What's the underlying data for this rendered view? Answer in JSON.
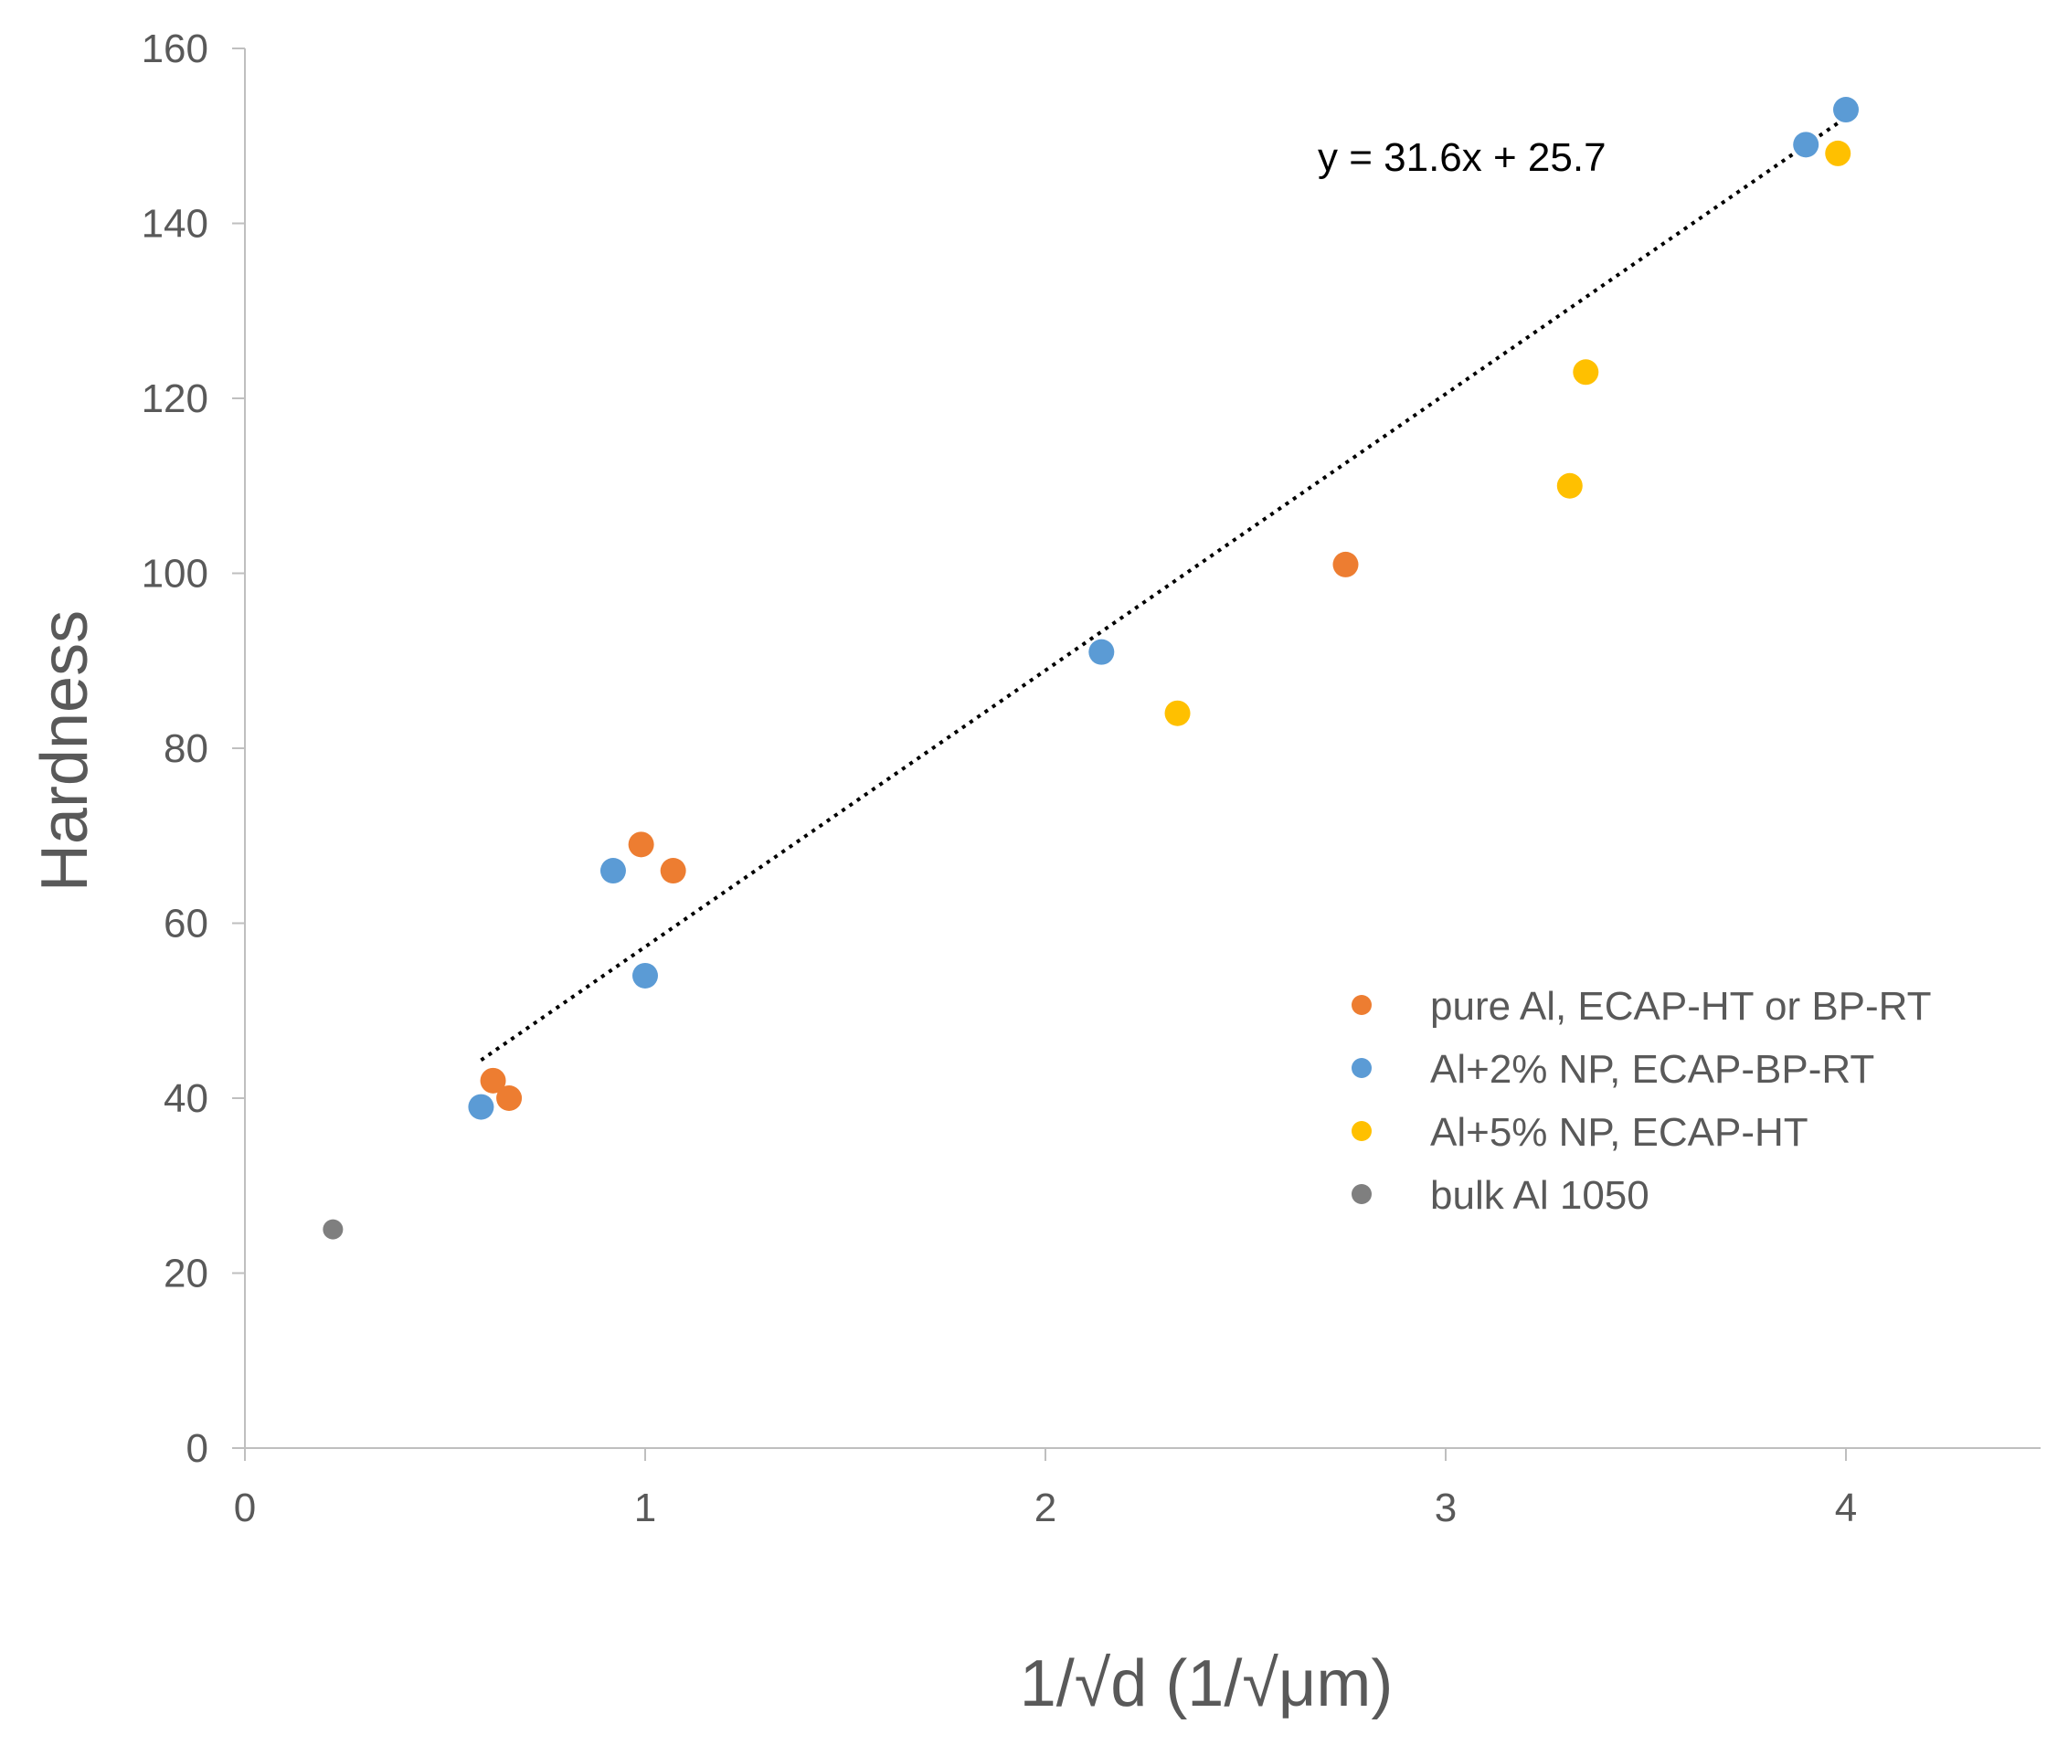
{
  "chart_data": {
    "type": "scatter",
    "title": "",
    "xlabel": "1/√d   (1/√μm)",
    "ylabel": "Hardness",
    "xlim": [
      0,
      4.5
    ],
    "ylim": [
      0,
      160
    ],
    "xticks": [
      0,
      1,
      2,
      3,
      4
    ],
    "yticks": [
      0,
      20,
      40,
      60,
      80,
      100,
      120,
      140,
      160
    ],
    "xtick_labels": [
      "0",
      "1",
      "2",
      "3",
      "4"
    ],
    "ytick_labels": [
      "0",
      "20",
      "40",
      "60",
      "80",
      "100",
      "120",
      "140",
      "160"
    ],
    "grid": false,
    "legend_position": "right",
    "series": [
      {
        "name": "pure Al, ECAP-HT or BP-RT",
        "color": "#ed7d31",
        "points": [
          [
            0.62,
            42
          ],
          [
            0.66,
            40
          ],
          [
            0.99,
            69
          ],
          [
            1.07,
            66
          ],
          [
            2.75,
            101
          ]
        ]
      },
      {
        "name": "Al+2% NP, ECAP-BP-RT",
        "color": "#5b9bd5",
        "points": [
          [
            0.59,
            39
          ],
          [
            0.92,
            66
          ],
          [
            1.0,
            54
          ],
          [
            2.14,
            91
          ],
          [
            3.9,
            149
          ],
          [
            4.0,
            153
          ]
        ]
      },
      {
        "name": "Al+5% NP, ECAP-HT",
        "color": "#ffc000",
        "points": [
          [
            2.33,
            84
          ],
          [
            3.31,
            110
          ],
          [
            3.35,
            123
          ],
          [
            3.98,
            148
          ]
        ]
      },
      {
        "name": "bulk Al 1050",
        "color": "#7f7f7f",
        "points": [
          [
            0.22,
            25
          ]
        ]
      }
    ],
    "trendline": {
      "equation": "y = 31.6x + 25.7",
      "slope": 31.6,
      "intercept": 25.7,
      "x_range": [
        0.59,
        4.0
      ],
      "style": "dotted",
      "color": "#000000"
    }
  }
}
